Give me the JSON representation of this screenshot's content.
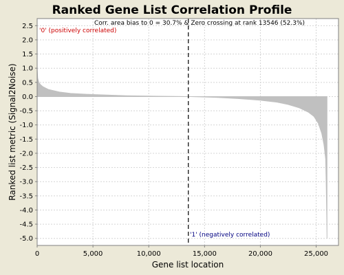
{
  "chart_data": {
    "type": "area",
    "title": "Ranked Gene List Correlation Profile",
    "annotation": "Corr. area bias to 0 = 30.7% & Zero crossing at rank 13546 (52.3%)",
    "xlabel": "Gene list location",
    "ylabel": "Ranked list metric (Signal2Noise)",
    "xlim": [
      0,
      27000
    ],
    "ylim": [
      -5.25,
      2.75
    ],
    "xticks": [
      0,
      5000,
      10000,
      15000,
      20000,
      25000
    ],
    "xtick_labels": [
      "0",
      "5,000",
      "10,000",
      "15,000",
      "20,000",
      "25,000"
    ],
    "yticks": [
      2.5,
      2.0,
      1.5,
      1.0,
      0.5,
      0.0,
      -0.5,
      -1.0,
      -1.5,
      -2.0,
      -2.5,
      -3.0,
      -3.5,
      -4.0,
      -4.5,
      -5.0
    ],
    "ytick_labels": [
      "2.5",
      "2.0",
      "1.5",
      "1.0",
      "0.5",
      "0.0",
      "-0.5",
      "-1.0",
      "-1.5",
      "-2.0",
      "-2.5",
      "-3.0",
      "-3.5",
      "-4.0",
      "-4.5",
      "-5.0"
    ],
    "grid": true,
    "zero_crossing_rank": 13546,
    "positive_label": "'0' (positively correlated)",
    "negative_label": "'1' (negatively correlated)",
    "x": [
      0,
      50,
      150,
      300,
      500,
      1000,
      2000,
      3000,
      5000,
      8000,
      11000,
      13546,
      16000,
      18000,
      20000,
      21500,
      22500,
      23500,
      24300,
      24800,
      25200,
      25500,
      25700,
      25850,
      25900,
      25950,
      25970
    ],
    "y": [
      1.0,
      0.65,
      0.5,
      0.42,
      0.35,
      0.25,
      0.16,
      0.11,
      0.07,
      0.03,
      0.01,
      0.0,
      -0.03,
      -0.07,
      -0.13,
      -0.2,
      -0.28,
      -0.4,
      -0.55,
      -0.7,
      -0.95,
      -1.3,
      -1.7,
      -2.2,
      -3.1,
      -4.3,
      -5.0
    ],
    "colors": {
      "fill": "#c0c0c0",
      "plot_bg": "#ffffff",
      "grid": "#d4d4d4",
      "page_bg": "#ece9d8",
      "positive": "#cc0000",
      "negative": "#000080"
    }
  }
}
